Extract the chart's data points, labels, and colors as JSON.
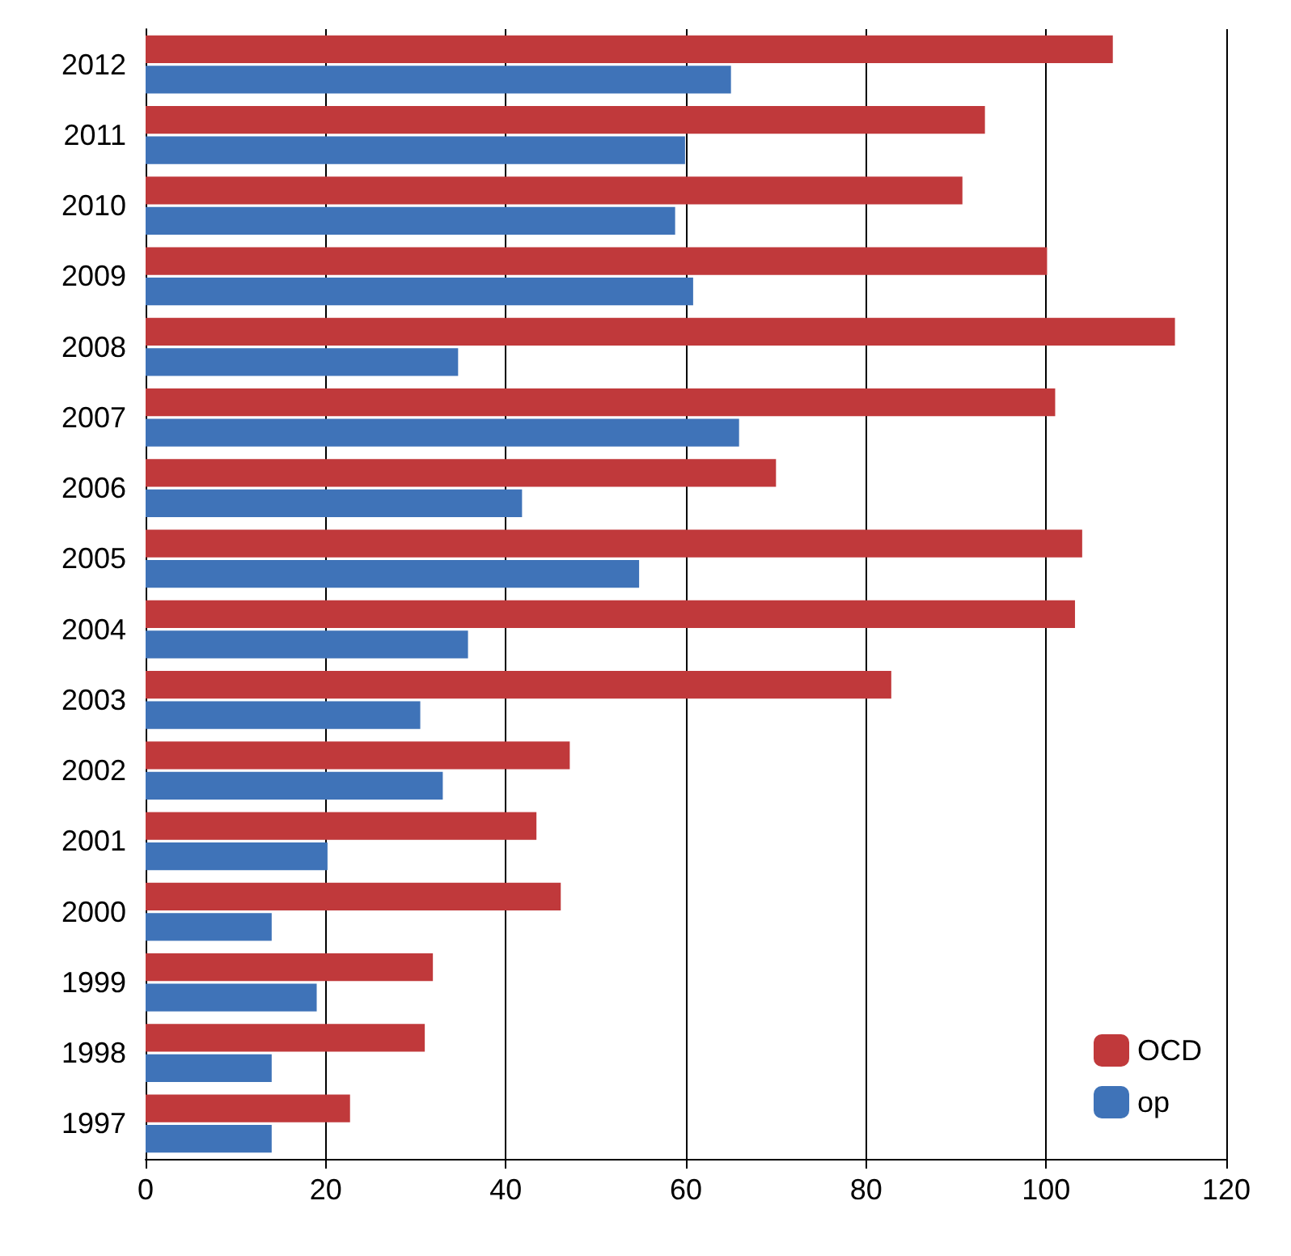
{
  "chart_data": {
    "type": "bar",
    "orientation": "horizontal",
    "categories": [
      "2012",
      "2011",
      "2010",
      "2009",
      "2008",
      "2007",
      "2006",
      "2005",
      "2004",
      "2003",
      "2002",
      "2001",
      "2000",
      "1999",
      "1998",
      "1997"
    ],
    "series": [
      {
        "name": "OCD",
        "color": "#c0393b",
        "values": [
          107.4,
          93.2,
          90.7,
          100.1,
          114.3,
          101.0,
          70.0,
          104.0,
          103.2,
          82.8,
          47.1,
          43.4,
          46.1,
          31.9,
          31.0,
          22.7
        ]
      },
      {
        "name": "op",
        "color": "#3f73b8",
        "values": [
          65.0,
          59.9,
          58.8,
          60.8,
          34.7,
          65.9,
          41.8,
          54.8,
          35.8,
          30.5,
          33.0,
          20.2,
          14.0,
          19.0,
          14.0,
          14.0
        ]
      }
    ],
    "xlim": [
      0,
      120
    ],
    "xticks": [
      0,
      20,
      40,
      60,
      80,
      100,
      120
    ],
    "grid": "x",
    "legend": "bottom right"
  }
}
